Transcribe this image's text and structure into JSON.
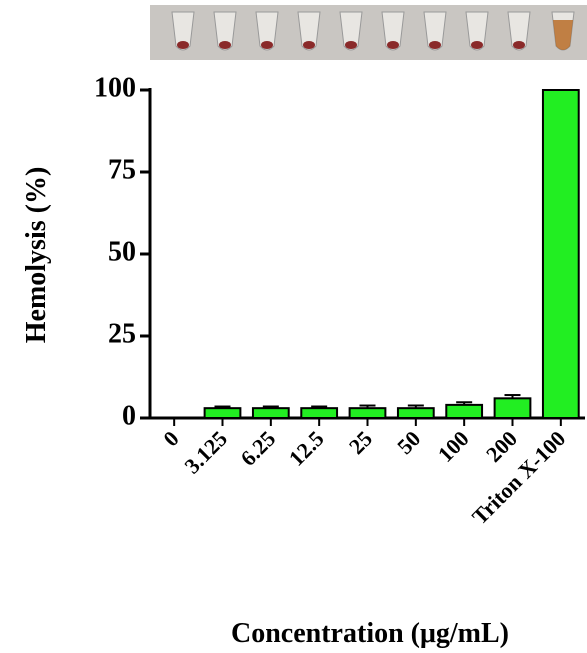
{
  "chart_data": {
    "type": "bar",
    "x_label": "Concentration (μg/mL)",
    "y_label": "Hemolysis (%)",
    "categories": [
      "0",
      "3.125",
      "6.25",
      "12.5",
      "25",
      "50",
      "100",
      "200",
      "Triton X-100"
    ],
    "values": [
      0,
      3,
      3,
      3,
      3,
      3,
      4,
      6,
      100
    ],
    "errors": [
      0,
      0.5,
      0.5,
      0.5,
      0.8,
      0.8,
      0.8,
      1,
      0
    ],
    "color": "#22ee22",
    "ylim": [
      0,
      100
    ],
    "yticks": [
      0,
      25,
      50,
      75,
      100
    ]
  }
}
